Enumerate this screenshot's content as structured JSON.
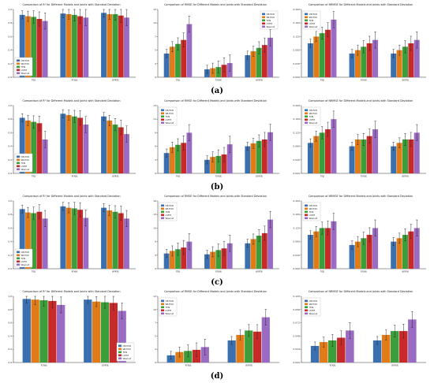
{
  "row_labels": [
    "(a)",
    "(b)",
    "(c)",
    "(d)"
  ],
  "colors": {
    "series": [
      "#3a6fb0",
      "#e07b18",
      "#3c9e3a",
      "#c82a2a",
      "#9a6bc2"
    ],
    "axis": "#333333",
    "error": "#222222",
    "sig": "#111111"
  },
  "chart_data": [
    {
      "type": "bar",
      "title": "Comparison of R² for Different Models and Joints with Standard Deviation",
      "xlabel": "",
      "ylabel": "",
      "categories": [
        "hip",
        "knee",
        "ankle"
      ],
      "legend": "lower-left",
      "grid": false,
      "ylim": [
        0,
        1
      ],
      "series": [
        {
          "name": "CB-TCN",
          "values": [
            0.92,
            0.94,
            0.95
          ]
        },
        {
          "name": "SB-TCN",
          "values": [
            0.9,
            0.93,
            0.93
          ]
        },
        {
          "name": "TCN",
          "values": [
            0.89,
            0.92,
            0.93
          ]
        },
        {
          "name": "LSTM",
          "values": [
            0.86,
            0.9,
            0.91
          ]
        },
        {
          "name": "Wavnet",
          "values": [
            0.83,
            0.88,
            0.88
          ]
        }
      ]
    },
    {
      "type": "bar",
      "title": "Comparison of RMSE for Different Models and Joints with Standard Deviation",
      "xlabel": "",
      "ylabel": "",
      "categories": [
        "hip",
        "knee",
        "ankle"
      ],
      "legend": "upper-right",
      "grid": false,
      "ylim": [
        0,
        12
      ],
      "series": [
        {
          "name": "CB-TCN",
          "values": [
            4.2,
            1.4,
            3.9
          ]
        },
        {
          "name": "SB-TCN",
          "values": [
            5.4,
            1.6,
            4.6
          ]
        },
        {
          "name": "TCN",
          "values": [
            5.9,
            1.8,
            5.2
          ]
        },
        {
          "name": "LSTM",
          "values": [
            6.6,
            2.2,
            5.7
          ]
        },
        {
          "name": "Wavnet",
          "values": [
            9.4,
            2.5,
            7.0
          ]
        }
      ]
    },
    {
      "type": "bar",
      "title": "Comparison of NRMSE for Different Models and Joints with Standard Deviation",
      "xlabel": "",
      "ylabel": "",
      "categories": [
        "hip",
        "knee",
        "ankle"
      ],
      "legend": "upper-left",
      "grid": false,
      "ylim": [
        0,
        0.2
      ],
      "series": [
        {
          "name": "CB-TCN",
          "values": [
            0.1,
            0.07,
            0.07
          ]
        },
        {
          "name": "SB-TCN",
          "values": [
            0.12,
            0.08,
            0.08
          ]
        },
        {
          "name": "TCN",
          "values": [
            0.13,
            0.09,
            0.09
          ]
        },
        {
          "name": "LSTM",
          "values": [
            0.14,
            0.1,
            0.1
          ]
        },
        {
          "name": "Wavnet",
          "values": [
            0.17,
            0.11,
            0.11
          ]
        }
      ]
    },
    {
      "type": "bar",
      "title": "Comparison of R² for Different Models and Joints with Standard Deviation",
      "xlabel": "",
      "ylabel": "",
      "categories": [
        "hip",
        "knee",
        "ankle"
      ],
      "legend": "lower-left",
      "grid": false,
      "ylim": [
        0,
        1
      ],
      "series": [
        {
          "name": "CB-TCN",
          "values": [
            0.82,
            0.88,
            0.84
          ]
        },
        {
          "name": "SB-TCN",
          "values": [
            0.78,
            0.86,
            0.78
          ]
        },
        {
          "name": "TCN",
          "values": [
            0.76,
            0.84,
            0.72
          ]
        },
        {
          "name": "LSTM",
          "values": [
            0.74,
            0.82,
            0.68
          ]
        },
        {
          "name": "Wavnet",
          "values": [
            0.5,
            0.72,
            0.58
          ]
        }
      ]
    },
    {
      "type": "bar",
      "title": "Comparison of RMSE for Different Models and Joints with Standard Deviation",
      "xlabel": "",
      "ylabel": "",
      "categories": [
        "hip",
        "knee",
        "ankle"
      ],
      "legend": "upper-left",
      "grid": false,
      "ylim": [
        0,
        14
      ],
      "series": [
        {
          "name": "CB-TCN",
          "values": [
            4.2,
            2.8,
            5.6
          ]
        },
        {
          "name": "SB-TCN",
          "values": [
            5.4,
            3.4,
            6.2
          ]
        },
        {
          "name": "TCN",
          "values": [
            5.9,
            3.6,
            6.7
          ]
        },
        {
          "name": "LSTM",
          "values": [
            6.3,
            3.9,
            7.0
          ]
        },
        {
          "name": "Wavnet",
          "values": [
            8.4,
            6.0,
            8.5
          ]
        }
      ]
    },
    {
      "type": "bar",
      "title": "Comparison of NRMSE for Different Models and Joints with Standard Deviation",
      "xlabel": "",
      "ylabel": "",
      "categories": [
        "hip",
        "knee",
        "ankle"
      ],
      "legend": "upper-left",
      "grid": false,
      "ylim": [
        0,
        0.2
      ],
      "series": [
        {
          "name": "CB-TCN",
          "values": [
            0.09,
            0.08,
            0.08
          ]
        },
        {
          "name": "SB-TCN",
          "values": [
            0.11,
            0.1,
            0.09
          ]
        },
        {
          "name": "TCN",
          "values": [
            0.12,
            0.1,
            0.1
          ]
        },
        {
          "name": "LSTM",
          "values": [
            0.13,
            0.11,
            0.1
          ]
        },
        {
          "name": "Wavnet",
          "values": [
            0.16,
            0.13,
            0.12
          ]
        }
      ]
    },
    {
      "type": "bar",
      "title": "Comparison of R² for Different Models and Joints with Standard Deviation",
      "xlabel": "",
      "ylabel": "",
      "categories": [
        "hip",
        "knee",
        "ankle"
      ],
      "legend": "lower-left",
      "grid": false,
      "ylim": [
        0,
        1
      ],
      "series": [
        {
          "name": "CB-TCN",
          "values": [
            0.88,
            0.92,
            0.9
          ]
        },
        {
          "name": "SB-TCN",
          "values": [
            0.83,
            0.9,
            0.86
          ]
        },
        {
          "name": "TCN",
          "values": [
            0.82,
            0.89,
            0.84
          ]
        },
        {
          "name": "LSTM",
          "values": [
            0.84,
            0.87,
            0.82
          ]
        },
        {
          "name": "Wavnet",
          "values": [
            0.74,
            0.75,
            0.74
          ]
        }
      ]
    },
    {
      "type": "bar",
      "title": "Comparison of RMSE for Different Models and Joints with Standard Deviation",
      "xlabel": "",
      "ylabel": "",
      "categories": [
        "hip",
        "knee",
        "ankle"
      ],
      "legend": "upper-left",
      "grid": false,
      "ylim": [
        0,
        16
      ],
      "series": [
        {
          "name": "CB-TCN",
          "values": [
            3.6,
            3.4,
            6.0
          ]
        },
        {
          "name": "SB-TCN",
          "values": [
            4.2,
            4.0,
            7.0
          ]
        },
        {
          "name": "TCN",
          "values": [
            4.6,
            4.4,
            7.8
          ]
        },
        {
          "name": "LSTM",
          "values": [
            5.0,
            4.8,
            8.4
          ]
        },
        {
          "name": "Wavnet",
          "values": [
            6.4,
            6.0,
            11.6
          ]
        }
      ]
    },
    {
      "type": "bar",
      "title": "Comparison of NRMSE for Different Models and Joints with Standard Deviation",
      "xlabel": "",
      "ylabel": "",
      "categories": [
        "hip",
        "knee",
        "ankle"
      ],
      "legend": "upper-left",
      "grid": false,
      "ylim": [
        0,
        0.2
      ],
      "series": [
        {
          "name": "CB-TCN",
          "values": [
            0.1,
            0.07,
            0.08
          ]
        },
        {
          "name": "SB-TCN",
          "values": [
            0.11,
            0.08,
            0.09
          ]
        },
        {
          "name": "TCN",
          "values": [
            0.12,
            0.09,
            0.1
          ]
        },
        {
          "name": "LSTM",
          "values": [
            0.12,
            0.1,
            0.11
          ]
        },
        {
          "name": "Wavnet",
          "values": [
            0.14,
            0.12,
            0.12
          ]
        }
      ]
    },
    {
      "type": "bar",
      "title": "Comparison of R² for Different Models and Joints with Standard Deviation",
      "xlabel": "",
      "ylabel": "",
      "categories": [
        "knee",
        "ankle"
      ],
      "legend": "lower-right",
      "grid": false,
      "ylim": [
        0,
        1
      ],
      "series": [
        {
          "name": "CB-TCN",
          "values": [
            0.96,
            0.95
          ]
        },
        {
          "name": "SB-TCN",
          "values": [
            0.95,
            0.92
          ]
        },
        {
          "name": "TCN",
          "values": [
            0.94,
            0.91
          ]
        },
        {
          "name": "LSTM",
          "values": [
            0.93,
            0.9
          ]
        },
        {
          "name": "Wavnet",
          "values": [
            0.87,
            0.78
          ]
        }
      ]
    },
    {
      "type": "bar",
      "title": "Comparison of RMSE for Different Models and Joints with Standard Deviation",
      "xlabel": "",
      "ylabel": "",
      "categories": [
        "knee",
        "ankle"
      ],
      "legend": "upper-left",
      "grid": false,
      "ylim": [
        0,
        12
      ],
      "series": [
        {
          "name": "CB-TCN",
          "values": [
            1.3,
            4.0
          ]
        },
        {
          "name": "SB-TCN",
          "values": [
            1.9,
            5.0
          ]
        },
        {
          "name": "TCN",
          "values": [
            2.1,
            5.8
          ]
        },
        {
          "name": "LSTM",
          "values": [
            2.3,
            5.6
          ]
        },
        {
          "name": "Wavnet",
          "values": [
            2.8,
            8.2
          ]
        }
      ]
    },
    {
      "type": "bar",
      "title": "Comparison of NRMSE for Different Models and Joints with Standard Deviation",
      "xlabel": "",
      "ylabel": "",
      "categories": [
        "knee",
        "ankle"
      ],
      "legend": "upper-left",
      "grid": false,
      "ylim": [
        0,
        0.12
      ],
      "series": [
        {
          "name": "CB-TCN",
          "values": [
            0.03,
            0.04
          ]
        },
        {
          "name": "SB-TCN",
          "values": [
            0.037,
            0.05
          ]
        },
        {
          "name": "TCN",
          "values": [
            0.04,
            0.057
          ]
        },
        {
          "name": "LSTM",
          "values": [
            0.045,
            0.057
          ]
        },
        {
          "name": "Wavnet",
          "values": [
            0.058,
            0.078
          ]
        }
      ]
    }
  ]
}
